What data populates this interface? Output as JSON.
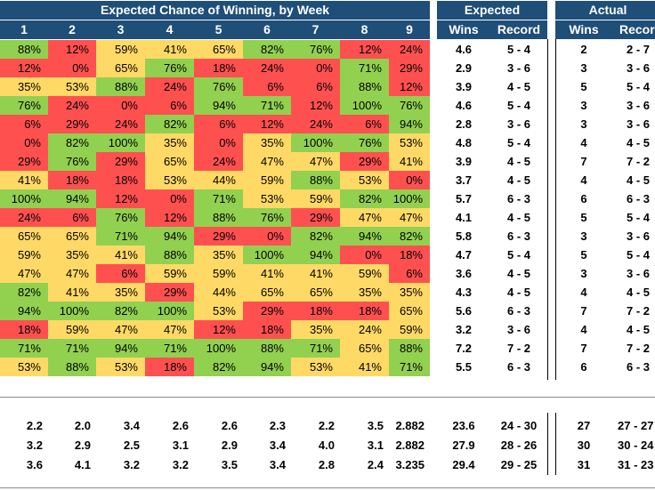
{
  "header": {
    "title_week": "Expected Chance of Winning, by Week",
    "title_expected": "Expected",
    "title_actual": "Actual",
    "weeks": [
      "1",
      "2",
      "3",
      "4",
      "5",
      "6",
      "7",
      "8",
      "9"
    ],
    "exp_wins": "Wins",
    "exp_record": "Record",
    "act_wins": "Wins",
    "act_record": "Record"
  },
  "colors": {
    "green": "#92d050",
    "yellow": "#ffd966",
    "red": "#ff5050",
    "header": "#1f4e79"
  },
  "rows": [
    {
      "pcts": [
        "88%",
        "12%",
        "59%",
        "41%",
        "65%",
        "82%",
        "76%",
        "12%",
        "24%"
      ],
      "colors": [
        "g",
        "r",
        "y",
        "y",
        "y",
        "g",
        "g",
        "r",
        "r"
      ],
      "exp_wins": "4.6",
      "exp_record": "5 - 4",
      "act_wins": "2",
      "act_record": "2 - 7"
    },
    {
      "pcts": [
        "12%",
        "0%",
        "65%",
        "76%",
        "18%",
        "24%",
        "0%",
        "71%",
        "29%"
      ],
      "colors": [
        "r",
        "r",
        "y",
        "g",
        "r",
        "r",
        "r",
        "g",
        "r"
      ],
      "exp_wins": "2.9",
      "exp_record": "3 - 6",
      "act_wins": "3",
      "act_record": "3 - 6"
    },
    {
      "pcts": [
        "35%",
        "53%",
        "88%",
        "24%",
        "76%",
        "6%",
        "6%",
        "88%",
        "12%"
      ],
      "colors": [
        "y",
        "y",
        "g",
        "r",
        "g",
        "r",
        "r",
        "g",
        "r"
      ],
      "exp_wins": "3.9",
      "exp_record": "4 - 5",
      "act_wins": "5",
      "act_record": "5 - 4"
    },
    {
      "pcts": [
        "76%",
        "24%",
        "0%",
        "6%",
        "94%",
        "71%",
        "12%",
        "100%",
        "76%"
      ],
      "colors": [
        "g",
        "r",
        "r",
        "r",
        "g",
        "g",
        "r",
        "g",
        "g"
      ],
      "exp_wins": "4.6",
      "exp_record": "5 - 4",
      "act_wins": "3",
      "act_record": "3 - 6"
    },
    {
      "pcts": [
        "6%",
        "29%",
        "24%",
        "82%",
        "6%",
        "12%",
        "24%",
        "6%",
        "94%"
      ],
      "colors": [
        "r",
        "r",
        "r",
        "g",
        "r",
        "r",
        "r",
        "r",
        "g"
      ],
      "exp_wins": "2.8",
      "exp_record": "3 - 6",
      "act_wins": "3",
      "act_record": "3 - 6"
    },
    {
      "pcts": [
        "0%",
        "82%",
        "100%",
        "35%",
        "0%",
        "35%",
        "100%",
        "76%",
        "53%"
      ],
      "colors": [
        "r",
        "g",
        "g",
        "y",
        "r",
        "y",
        "g",
        "g",
        "y"
      ],
      "exp_wins": "4.8",
      "exp_record": "5 - 4",
      "act_wins": "4",
      "act_record": "4 - 5"
    },
    {
      "pcts": [
        "29%",
        "76%",
        "29%",
        "65%",
        "24%",
        "47%",
        "47%",
        "29%",
        "41%"
      ],
      "colors": [
        "r",
        "g",
        "r",
        "y",
        "r",
        "y",
        "y",
        "r",
        "y"
      ],
      "exp_wins": "3.9",
      "exp_record": "4 - 5",
      "act_wins": "7",
      "act_record": "7 - 2"
    },
    {
      "pcts": [
        "41%",
        "18%",
        "18%",
        "53%",
        "44%",
        "59%",
        "88%",
        "53%",
        "0%"
      ],
      "colors": [
        "y",
        "r",
        "r",
        "y",
        "y",
        "y",
        "g",
        "y",
        "r"
      ],
      "exp_wins": "3.7",
      "exp_record": "4 - 5",
      "act_wins": "4",
      "act_record": "4 - 5"
    },
    {
      "pcts": [
        "100%",
        "94%",
        "12%",
        "0%",
        "71%",
        "53%",
        "59%",
        "82%",
        "100%"
      ],
      "colors": [
        "g",
        "g",
        "r",
        "r",
        "g",
        "y",
        "y",
        "g",
        "g"
      ],
      "exp_wins": "5.7",
      "exp_record": "6 - 3",
      "act_wins": "6",
      "act_record": "6 - 3"
    },
    {
      "pcts": [
        "24%",
        "6%",
        "76%",
        "12%",
        "88%",
        "76%",
        "29%",
        "47%",
        "47%"
      ],
      "colors": [
        "r",
        "r",
        "g",
        "r",
        "g",
        "g",
        "r",
        "y",
        "y"
      ],
      "exp_wins": "4.1",
      "exp_record": "4 - 5",
      "act_wins": "5",
      "act_record": "5 - 4"
    },
    {
      "pcts": [
        "65%",
        "65%",
        "71%",
        "94%",
        "29%",
        "0%",
        "82%",
        "94%",
        "82%"
      ],
      "colors": [
        "y",
        "y",
        "g",
        "g",
        "r",
        "r",
        "g",
        "g",
        "g"
      ],
      "exp_wins": "5.8",
      "exp_record": "6 - 3",
      "act_wins": "3",
      "act_record": "3 - 6"
    },
    {
      "pcts": [
        "59%",
        "35%",
        "41%",
        "88%",
        "35%",
        "100%",
        "94%",
        "0%",
        "18%"
      ],
      "colors": [
        "y",
        "y",
        "y",
        "g",
        "y",
        "g",
        "g",
        "r",
        "r"
      ],
      "exp_wins": "4.7",
      "exp_record": "5 - 4",
      "act_wins": "5",
      "act_record": "5 - 4"
    },
    {
      "pcts": [
        "47%",
        "47%",
        "6%",
        "59%",
        "59%",
        "41%",
        "41%",
        "59%",
        "6%"
      ],
      "colors": [
        "y",
        "y",
        "r",
        "y",
        "y",
        "y",
        "y",
        "y",
        "r"
      ],
      "exp_wins": "3.6",
      "exp_record": "4 - 5",
      "act_wins": "3",
      "act_record": "3 - 6"
    },
    {
      "pcts": [
        "82%",
        "41%",
        "35%",
        "29%",
        "44%",
        "65%",
        "65%",
        "35%",
        "35%"
      ],
      "colors": [
        "g",
        "y",
        "y",
        "r",
        "y",
        "y",
        "y",
        "y",
        "y"
      ],
      "exp_wins": "4.3",
      "exp_record": "4 - 5",
      "act_wins": "4",
      "act_record": "4 - 5"
    },
    {
      "pcts": [
        "94%",
        "100%",
        "82%",
        "100%",
        "53%",
        "29%",
        "18%",
        "18%",
        "65%"
      ],
      "colors": [
        "g",
        "g",
        "g",
        "g",
        "y",
        "r",
        "r",
        "r",
        "y"
      ],
      "exp_wins": "5.6",
      "exp_record": "6 - 3",
      "act_wins": "7",
      "act_record": "7 - 2"
    },
    {
      "pcts": [
        "18%",
        "59%",
        "47%",
        "47%",
        "12%",
        "18%",
        "35%",
        "24%",
        "59%"
      ],
      "colors": [
        "r",
        "y",
        "y",
        "y",
        "r",
        "r",
        "y",
        "y",
        "y"
      ],
      "exp_wins": "3.2",
      "exp_record": "3 - 6",
      "act_wins": "4",
      "act_record": "4 - 5"
    },
    {
      "pcts": [
        "71%",
        "71%",
        "94%",
        "71%",
        "100%",
        "88%",
        "71%",
        "65%",
        "88%"
      ],
      "colors": [
        "g",
        "g",
        "g",
        "g",
        "g",
        "g",
        "g",
        "y",
        "g"
      ],
      "exp_wins": "7.2",
      "exp_record": "7 - 2",
      "act_wins": "7",
      "act_record": "7 - 2"
    },
    {
      "pcts": [
        "53%",
        "88%",
        "53%",
        "18%",
        "82%",
        "94%",
        "53%",
        "41%",
        "71%"
      ],
      "colors": [
        "y",
        "g",
        "y",
        "r",
        "g",
        "g",
        "y",
        "y",
        "g"
      ],
      "exp_wins": "5.5",
      "exp_record": "6 - 3",
      "act_wins": "6",
      "act_record": "6 - 3"
    }
  ],
  "summary": [
    {
      "vals": [
        "2.2",
        "2.0",
        "3.4",
        "2.6",
        "2.6",
        "2.3",
        "2.2",
        "3.5",
        "2.882"
      ],
      "exp_wins": "23.6",
      "exp_record": "24 - 30",
      "act_wins": "27",
      "act_record": "27 - 27"
    },
    {
      "vals": [
        "3.2",
        "2.9",
        "2.5",
        "3.1",
        "2.9",
        "3.4",
        "4.0",
        "3.1",
        "2.882"
      ],
      "exp_wins": "27.9",
      "exp_record": "28 - 26",
      "act_wins": "30",
      "act_record": "30 - 24"
    },
    {
      "vals": [
        "3.6",
        "4.1",
        "3.2",
        "3.2",
        "3.5",
        "3.4",
        "2.8",
        "2.4",
        "3.235"
      ],
      "exp_wins": "29.4",
      "exp_record": "29 - 25",
      "act_wins": "31",
      "act_record": "31 - 23"
    }
  ]
}
